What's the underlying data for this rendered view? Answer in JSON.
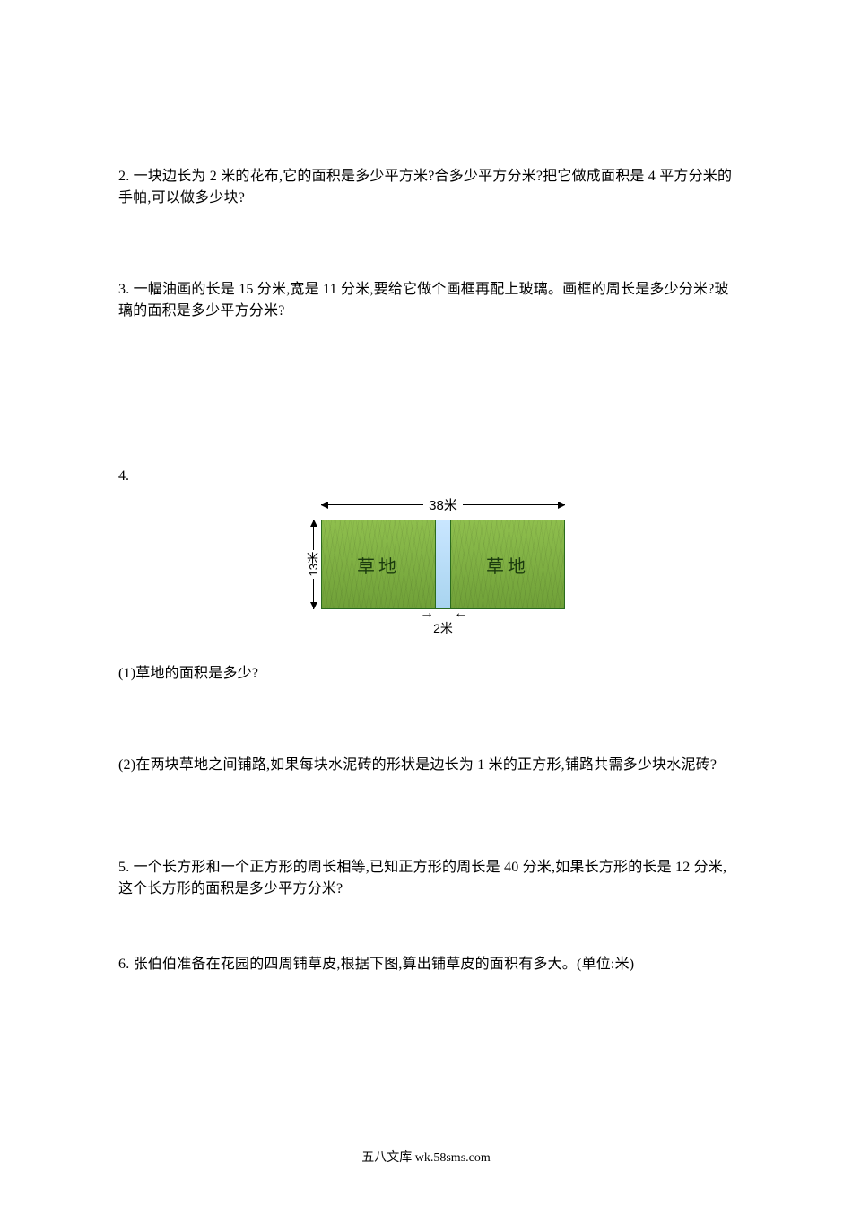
{
  "problems": {
    "p2": "2. 一块边长为 2 米的花布,它的面积是多少平方米?合多少平方分米?把它做成面积是 4 平方分米的手帕,可以做多少块?",
    "p3": "3. 一幅油画的长是 15 分米,宽是 11 分米,要给它做个画框再配上玻璃。画框的周长是多少分米?玻璃的面积是多少平方分米?",
    "p4num": "4.",
    "p41": "(1)草地的面积是多少?",
    "p42": "(2)在两块草地之间铺路,如果每块水泥砖的形状是边长为 1 米的正方形,铺路共需多少块水泥砖?",
    "p5": "5. 一个长方形和一个正方形的周长相等,已知正方形的周长是 40 分米,如果长方形的长是 12 分米,这个长方形的面积是多少平方分米?",
    "p6": "6. 张伯伯准备在花园的四周铺草皮,根据下图,算出铺草皮的面积有多大。(单位:米)"
  },
  "diagram": {
    "top_label": "38米",
    "left_label": "13米",
    "bottom_label": "2米",
    "grass_label_left": "草地",
    "grass_label_right": "草地",
    "grass_color_top": "#8fbf4e",
    "grass_color_bottom": "#6fa038",
    "path_color_top": "#c9e6ff",
    "path_color_bottom": "#a8d4ef",
    "border_color": "#2a6b1e",
    "tick_left": "→",
    "tick_right": "←",
    "total_width_m": 38,
    "height_m": 13,
    "path_width_m": 2
  },
  "footer": "五八文库 wk.58sms.com"
}
